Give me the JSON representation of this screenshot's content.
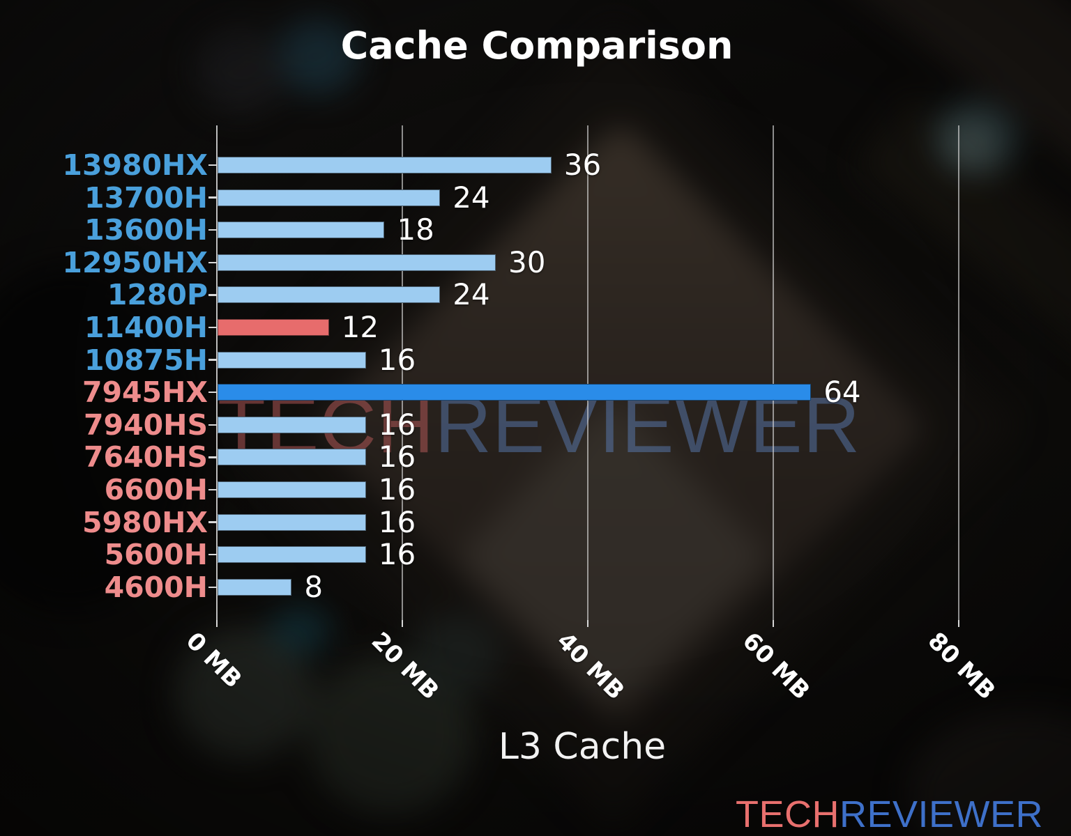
{
  "chart_data": {
    "type": "bar",
    "orientation": "horizontal",
    "title": "Cache Comparison",
    "xlabel": "L3 Cache",
    "categories": [
      "13980HX",
      "13700H",
      "13600H",
      "12950HX",
      "1280P",
      "11400H",
      "10875H",
      "7945HX",
      "7940HS",
      "7640HS",
      "6600H",
      "5980HX",
      "5600H",
      "4600H"
    ],
    "values": [
      36,
      24,
      18,
      30,
      24,
      12,
      16,
      64,
      16,
      16,
      16,
      16,
      16,
      8
    ],
    "value_unit": "MB",
    "x_ticks": [
      "0 MB",
      "20 MB",
      "40 MB",
      "60 MB",
      "80 MB"
    ],
    "x_tick_values": [
      0,
      20,
      40,
      60,
      80
    ],
    "xlim": [
      0,
      85
    ],
    "grid": "vertical-only",
    "legend": "none",
    "bar_colors": [
      "#9dccf1",
      "#9dccf1",
      "#9dccf1",
      "#9dccf1",
      "#9dccf1",
      "#e76c6c",
      "#9dccf1",
      "#2a8ce9",
      "#9dccf1",
      "#9dccf1",
      "#9dccf1",
      "#9dccf1",
      "#9dccf1",
      "#9dccf1"
    ],
    "label_colors": [
      "#4aa0dc",
      "#4aa0dc",
      "#4aa0dc",
      "#4aa0dc",
      "#4aa0dc",
      "#4aa0dc",
      "#4aa0dc",
      "#ee8c8c",
      "#ee8c8c",
      "#ee8c8c",
      "#ee8c8c",
      "#ee8c8c",
      "#ee8c8c",
      "#ee8c8c"
    ]
  },
  "watermark": {
    "tech": "TECH",
    "reviewer": "REVIEWER"
  },
  "logo": {
    "tech": "TECH",
    "reviewer": "REVIEWER"
  },
  "colors": {
    "title": "#ffffff",
    "value_label": "#ffffff",
    "tick_label": "#ffffff",
    "gridline": "rgba(222,222,222,0.62)",
    "watermark_tech": "rgba(187,92,92,0.5)",
    "watermark_reviewer": "rgba(96,134,196,0.45)",
    "logo_tech": "#e8706e",
    "logo_reviewer": "#3e70c9"
  }
}
